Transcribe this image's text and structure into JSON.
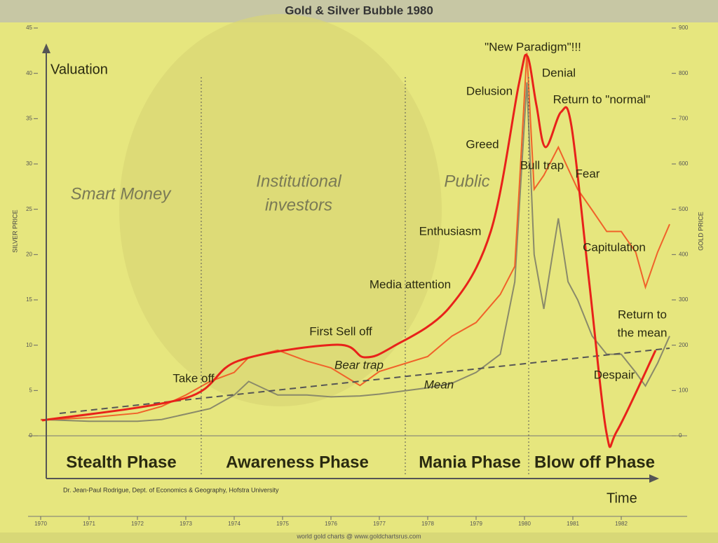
{
  "title": "Gold & Silver Bubble 1980",
  "chart_data": {
    "type": "line",
    "y_label": "SILVER PRICE",
    "y2_label": "GOLD PRICE",
    "x": [
      1970,
      1971,
      1972,
      1972.5,
      1973,
      1973.5,
      1974,
      1974.3,
      1974.9,
      1975.5,
      1976,
      1976.6,
      1977,
      1978,
      1978.5,
      1979,
      1979.5,
      1979.8,
      1980.05,
      1980.2,
      1980.4,
      1980.7,
      1980.9,
      1981.1,
      1981.4,
      1981.7,
      1982,
      1982.3,
      1982.5,
      1982.75,
      1983
    ],
    "series": [
      {
        "color": "#8a8a6a",
        "values": [
          1.8,
          1.6,
          1.6,
          1.8,
          2.4,
          3,
          4.5,
          6,
          4.5,
          4.5,
          4.3,
          4.4,
          4.6,
          5.3,
          5.8,
          7,
          9,
          17,
          39,
          20,
          14,
          24,
          17,
          15,
          11,
          9,
          9,
          7,
          5.5,
          8,
          11
        ]
      },
      {
        "color": "#f0622a",
        "axis": "y2",
        "values": [
          35,
          40,
          50,
          65,
          90,
          120,
          140,
          173,
          189,
          165,
          150,
          111,
          142,
          175,
          220,
          250,
          312,
          374,
          845,
          544,
          575,
          637,
          590,
          544,
          498,
          451,
          451,
          405,
          328,
          405,
          467
        ]
      }
    ],
    "xlim": [
      1970,
      1983
    ],
    "xticks": [
      1970,
      1971,
      1972,
      1973,
      1974,
      1975,
      1976,
      1977,
      1978,
      1979,
      1980,
      1981,
      1982
    ],
    "ylim": [
      0,
      45
    ],
    "yticks": [
      0,
      5,
      10,
      15,
      20,
      25,
      30,
      35,
      40,
      45
    ],
    "y2lim": [
      0,
      900
    ],
    "y2ticks": [
      0,
      100,
      200,
      300,
      400,
      500,
      600,
      700,
      800,
      900
    ],
    "axis_titles": [
      "Valuation",
      "Time"
    ],
    "groups": [
      "Smart Money",
      "Institutional",
      "investors",
      "Public"
    ],
    "phases": [
      "Stealth Phase",
      "Awareness Phase",
      "Mania Phase",
      "Blow off Phase"
    ],
    "annotations": [
      "\"New Paradigm\"!!!",
      "Denial",
      "Delusion",
      "Return to \"normal\"",
      "Greed",
      "Bull trap",
      "Fear",
      "Enthusiasm",
      "Capitulation",
      "Media attention",
      "Return to",
      "the mean",
      "First Sell off",
      "Bear trap",
      "Take off",
      "Despair",
      "Mean"
    ],
    "credit": "Dr. Jean-Paul Rodrigue, Dept. of Economics & Geography, Hofstra University",
    "source": "world gold charts @ www.goldchartsrus.com"
  }
}
